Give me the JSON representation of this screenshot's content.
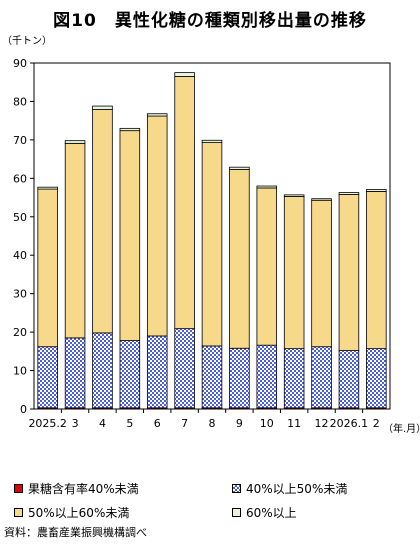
{
  "title": "図10　異性化糖の種類別移出量の推移",
  "source": "資料：農畜産業振興機構調べ",
  "chart_data": {
    "type": "bar",
    "stacked": true,
    "y_unit": "（千トン）",
    "x_unit": "（年.月）",
    "ylim": [
      0,
      90
    ],
    "yticks": [
      0,
      10,
      20,
      30,
      40,
      50,
      60,
      70,
      80,
      90
    ],
    "categories": [
      "2025.2",
      "3",
      "4",
      "5",
      "6",
      "7",
      "8",
      "9",
      "10",
      "11",
      "12",
      "2026.1",
      "2"
    ],
    "series": [
      {
        "name": "果糖含有率40%未満",
        "color": "#e00000",
        "pattern": "solid",
        "values": [
          0.3,
          0.3,
          0.3,
          0.3,
          0.3,
          0.3,
          0.3,
          0.3,
          0.3,
          0.3,
          0.3,
          0.3,
          0.3
        ]
      },
      {
        "name": "40%以上50%未満",
        "color": "#5b6ee8",
        "pattern": "check",
        "values": [
          15.9,
          18.2,
          19.5,
          17.5,
          18.7,
          20.6,
          16.1,
          15.5,
          16.3,
          15.4,
          15.9,
          14.9,
          15.4
        ]
      },
      {
        "name": "50%以上60%未満",
        "color": "#f7d98b",
        "pattern": "solid",
        "values": [
          41.0,
          50.6,
          58.1,
          54.6,
          57.2,
          65.6,
          52.9,
          46.5,
          40.9,
          39.6,
          38.1,
          40.6,
          40.9
        ]
      },
      {
        "name": "60%以上",
        "color": "#e8f5dc",
        "pattern": "solid",
        "values": [
          0.5,
          0.7,
          0.9,
          0.6,
          0.6,
          1.0,
          0.6,
          0.6,
          0.5,
          0.4,
          0.4,
          0.5,
          0.5
        ]
      }
    ],
    "legend": "bottom",
    "grid": false
  }
}
